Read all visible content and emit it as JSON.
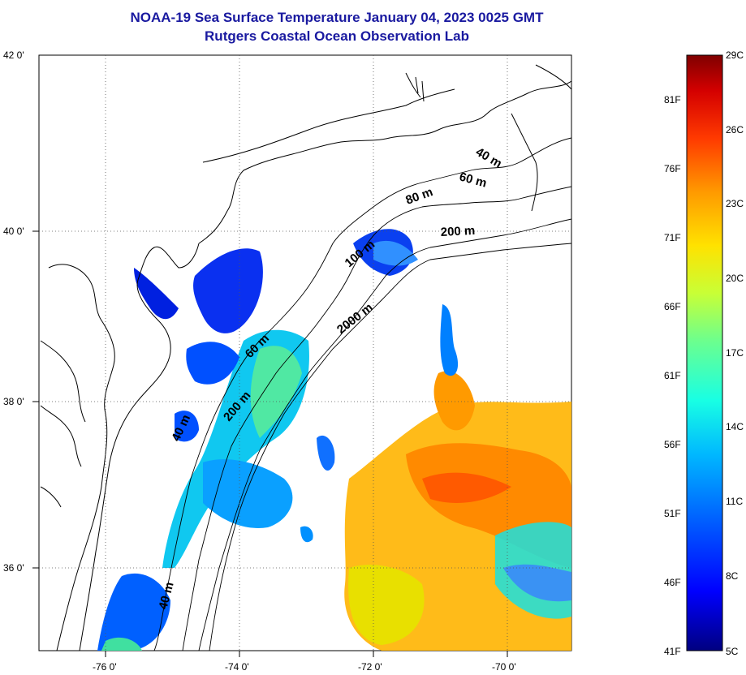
{
  "title": {
    "line1": "NOAA-19 Sea Surface Temperature January 04, 2023 0025 GMT",
    "line2": "Rutgers Coastal Ocean Observation Lab"
  },
  "map": {
    "lat_labels": [
      "42 0'",
      "40 0'",
      "38 0'",
      "36 0'"
    ],
    "lon_labels": [
      "-76 0'",
      "-74 0'",
      "-72 0'",
      "-70 0'"
    ],
    "isobath_labels": [
      "40 m",
      "60 m",
      "80 m",
      "200 m",
      "100 m",
      "2000 m",
      "60 m",
      "200 m",
      "40 m",
      "40 m"
    ],
    "grid": "dotted",
    "land_color": "#ffffff",
    "coastline_color": "#000000"
  },
  "colorbar": {
    "fahrenheit": [
      "81F",
      "76F",
      "71F",
      "66F",
      "61F",
      "56F",
      "51F",
      "46F",
      "41F"
    ],
    "celsius": [
      "29C",
      "26C",
      "23C",
      "20C",
      "17C",
      "14C",
      "11C",
      "8C",
      "5C"
    ],
    "colors": [
      "#7f0000",
      "#d40000",
      "#ff3a00",
      "#ff9a00",
      "#ffe200",
      "#c8ff36",
      "#6cff8e",
      "#18ffe4",
      "#00b8ff",
      "#0060ff",
      "#0010ff",
      "#000090"
    ]
  }
}
